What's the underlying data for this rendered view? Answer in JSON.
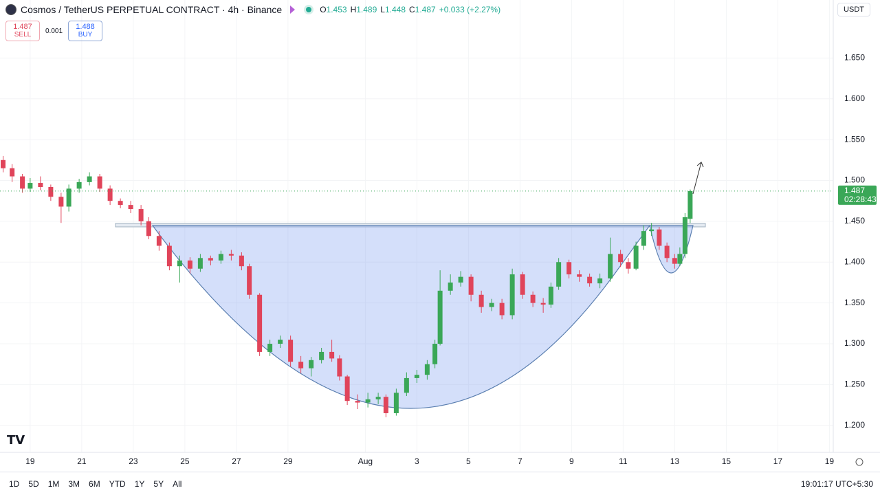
{
  "header": {
    "title": "Cosmos / TetherUS PERPETUAL CONTRACT · 4h · Binance",
    "ohlc": [
      {
        "label": "O",
        "value": "1.453"
      },
      {
        "label": "H",
        "value": "1.489"
      },
      {
        "label": "L",
        "value": "1.448"
      },
      {
        "label": "C",
        "value": "1.487"
      }
    ],
    "change": "+0.033 (+2.27%)",
    "sell_price": "1.487",
    "sell_label": "SELL",
    "spread": "0.001",
    "buy_price": "1.488",
    "buy_label": "BUY"
  },
  "chart_data": {
    "type": "candlestick",
    "x": [
      17.95,
      18.3,
      18.7,
      19.0,
      19.4,
      19.8,
      20.2,
      20.5,
      20.9,
      21.3,
      21.7,
      22.1,
      22.5,
      22.9,
      23.3,
      23.6,
      24.0,
      24.4,
      24.8,
      25.2,
      25.6,
      26.0,
      26.4,
      26.8,
      27.2,
      27.5,
      27.9,
      28.3,
      28.7,
      29.1,
      29.5,
      29.9,
      30.3,
      30.7,
      31.0,
      31.3,
      31.7,
      32.1,
      32.5,
      32.8,
      33.2,
      33.6,
      34.0,
      34.4,
      34.7,
      34.9,
      35.3,
      35.7,
      36.1,
      36.5,
      36.9,
      37.3,
      37.7,
      38.1,
      38.5,
      38.9,
      39.2,
      39.5,
      39.9,
      40.3,
      40.7,
      41.1,
      41.5,
      41.9,
      42.2,
      42.5,
      42.8,
      43.1,
      43.4,
      43.7,
      44.0,
      44.2,
      44.4,
      44.6
    ],
    "open": [
      1.525,
      1.515,
      1.505,
      1.49,
      1.497,
      1.492,
      1.48,
      1.468,
      1.49,
      1.498,
      1.505,
      1.49,
      1.475,
      1.47,
      1.465,
      1.45,
      1.432,
      1.42,
      1.395,
      1.402,
      1.392,
      1.405,
      1.402,
      1.41,
      1.408,
      1.395,
      1.36,
      1.29,
      1.3,
      1.305,
      1.278,
      1.27,
      1.28,
      1.29,
      1.282,
      1.26,
      1.23,
      1.228,
      1.232,
      1.235,
      1.215,
      1.24,
      1.258,
      1.262,
      1.275,
      1.3,
      1.365,
      1.375,
      1.382,
      1.36,
      1.345,
      1.35,
      1.335,
      1.385,
      1.36,
      1.35,
      1.348,
      1.37,
      1.4,
      1.385,
      1.382,
      1.374,
      1.38,
      1.41,
      1.4,
      1.392,
      1.42,
      1.438,
      1.44,
      1.42,
      1.405,
      1.398,
      1.41,
      1.453
    ],
    "high": [
      1.53,
      1.52,
      1.508,
      1.503,
      1.505,
      1.495,
      1.485,
      1.495,
      1.502,
      1.51,
      1.508,
      1.494,
      1.478,
      1.475,
      1.47,
      1.455,
      1.438,
      1.424,
      1.408,
      1.406,
      1.41,
      1.408,
      1.414,
      1.415,
      1.412,
      1.398,
      1.362,
      1.305,
      1.31,
      1.31,
      1.285,
      1.284,
      1.295,
      1.305,
      1.286,
      1.262,
      1.238,
      1.24,
      1.24,
      1.238,
      1.245,
      1.265,
      1.268,
      1.28,
      1.305,
      1.39,
      1.385,
      1.389,
      1.385,
      1.365,
      1.355,
      1.355,
      1.392,
      1.388,
      1.364,
      1.356,
      1.375,
      1.405,
      1.403,
      1.39,
      1.386,
      1.386,
      1.43,
      1.415,
      1.405,
      1.425,
      1.445,
      1.448,
      1.443,
      1.424,
      1.41,
      1.418,
      1.46,
      1.489
    ],
    "low": [
      1.51,
      1.498,
      1.485,
      1.486,
      1.488,
      1.475,
      1.448,
      1.462,
      1.485,
      1.494,
      1.486,
      1.47,
      1.466,
      1.46,
      1.445,
      1.428,
      1.414,
      1.39,
      1.375,
      1.386,
      1.388,
      1.396,
      1.398,
      1.402,
      1.39,
      1.355,
      1.285,
      1.285,
      1.295,
      1.272,
      1.264,
      1.26,
      1.276,
      1.278,
      1.255,
      1.225,
      1.22,
      1.222,
      1.226,
      1.21,
      1.212,
      1.236,
      1.252,
      1.256,
      1.27,
      1.298,
      1.36,
      1.37,
      1.352,
      1.338,
      1.34,
      1.33,
      1.33,
      1.355,
      1.345,
      1.338,
      1.344,
      1.366,
      1.38,
      1.376,
      1.37,
      1.368,
      1.376,
      1.394,
      1.386,
      1.39,
      1.415,
      1.432,
      1.415,
      1.4,
      1.392,
      1.395,
      1.405,
      1.448
    ],
    "close": [
      1.515,
      1.505,
      1.49,
      1.497,
      1.492,
      1.48,
      1.468,
      1.49,
      1.498,
      1.505,
      1.49,
      1.475,
      1.47,
      1.465,
      1.45,
      1.432,
      1.42,
      1.395,
      1.402,
      1.392,
      1.405,
      1.402,
      1.41,
      1.408,
      1.395,
      1.36,
      1.29,
      1.3,
      1.305,
      1.278,
      1.27,
      1.28,
      1.29,
      1.282,
      1.26,
      1.23,
      1.228,
      1.232,
      1.235,
      1.215,
      1.24,
      1.258,
      1.262,
      1.275,
      1.3,
      1.365,
      1.375,
      1.382,
      1.36,
      1.345,
      1.35,
      1.335,
      1.385,
      1.36,
      1.35,
      1.348,
      1.37,
      1.4,
      1.385,
      1.382,
      1.374,
      1.38,
      1.41,
      1.4,
      1.392,
      1.42,
      1.438,
      1.44,
      1.42,
      1.405,
      1.398,
      1.41,
      1.455,
      1.487
    ],
    "up_color": "#3aa757",
    "down_color": "#e0445a",
    "xlim": [
      17.83,
      50.15
    ],
    "xticks": [
      19,
      21,
      23,
      25,
      27,
      29,
      {
        "value": 32,
        "label": "Aug"
      },
      {
        "value": 34,
        "label": "3"
      },
      {
        "value": 36,
        "label": "5"
      },
      {
        "value": 38,
        "label": "7"
      },
      {
        "value": 40,
        "label": "9"
      },
      {
        "value": 42,
        "label": "11"
      },
      {
        "value": 44,
        "label": "13"
      },
      {
        "value": 46,
        "label": "15"
      },
      {
        "value": 48,
        "label": "17"
      },
      {
        "value": 50,
        "label": "19"
      }
    ],
    "ylim": [
      1.167,
      1.721
    ],
    "yticks": [
      {
        "value": 1.2,
        "label": "1.200"
      },
      {
        "value": 1.25,
        "label": "1.250"
      },
      {
        "value": 1.3,
        "label": "1.300"
      },
      {
        "value": 1.35,
        "label": "1.350"
      },
      {
        "value": 1.4,
        "label": "1.400"
      },
      {
        "value": 1.45,
        "label": "1.450"
      },
      {
        "value": 1.5,
        "label": "1.500"
      },
      {
        "value": 1.55,
        "label": "1.550"
      },
      {
        "value": 1.6,
        "label": "1.600"
      },
      {
        "value": 1.65,
        "label": "1.650"
      }
    ],
    "grid": true,
    "last_price": 1.487,
    "countdown": "02:28:43",
    "currency": "USDT"
  },
  "toolbar": {
    "ranges": [
      "1D",
      "5D",
      "1M",
      "3M",
      "6M",
      "YTD",
      "1Y",
      "5Y",
      "All"
    ],
    "time": "19:01:17 UTC+5:30"
  }
}
